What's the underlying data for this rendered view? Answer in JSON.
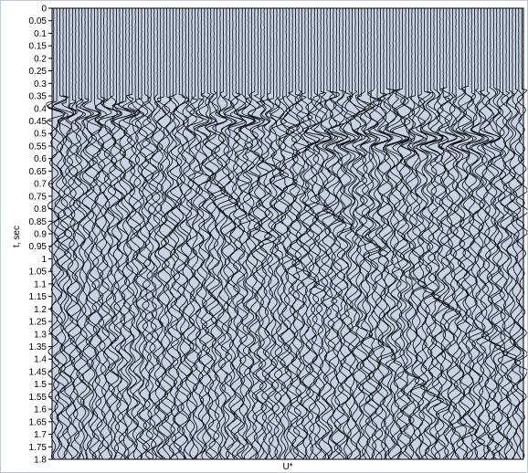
{
  "chart_data": {
    "type": "seismic-wiggle",
    "title": "",
    "ylabel": "t, sec",
    "xlabel": "U*",
    "ylim": [
      0,
      1.8
    ],
    "y_inverted": true,
    "y_ticks": [
      "0",
      "0.05",
      "0.1",
      "0.15",
      "0.2",
      "0.25",
      "0.3",
      "0.35",
      "0.4",
      "0.45",
      "0.5",
      "0.55",
      "0.6",
      "0.65",
      "0.7",
      "0.75",
      "0.8",
      "0.85",
      "0.9",
      "0.95",
      "1",
      "1.05",
      "1.1",
      "1.15",
      "1.2",
      "1.25",
      "1.3",
      "1.35",
      "1.4",
      "1.45",
      "1.5",
      "1.55",
      "1.6",
      "1.65",
      "1.7",
      "1.75",
      "1.8"
    ],
    "trace_count": 150,
    "first_arrival_sec": [
      0.37,
      0.33
    ],
    "plot_background": "#c8d3e6",
    "trace_color": "#000000",
    "grid": false
  }
}
